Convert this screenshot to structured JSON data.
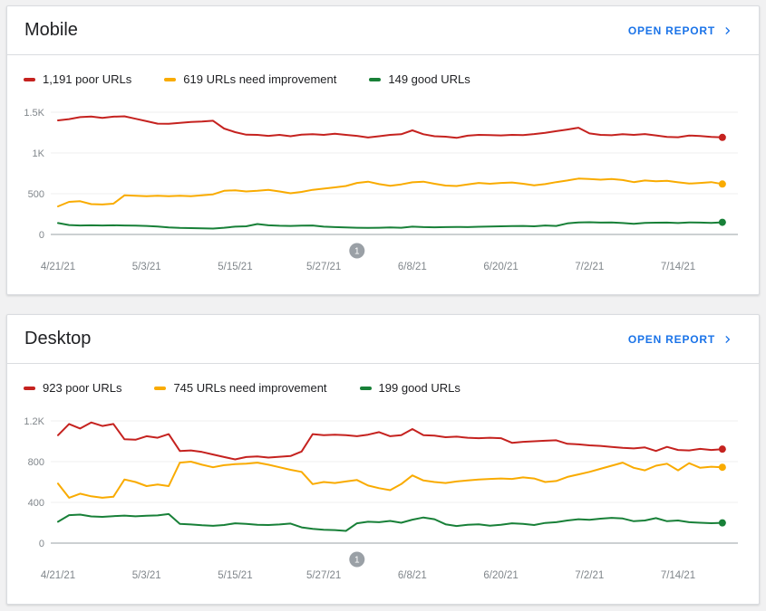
{
  "page": {
    "background": "#f1f1f2"
  },
  "colors": {
    "poor": "#c5221f",
    "needs_improvement": "#f9ab00",
    "good": "#188038",
    "link": "#1a73e8",
    "axis_label": "#80868b",
    "gridline": "#efefef",
    "zero_line": "#9aa0a6",
    "badge_fill": "#9aa0a6",
    "badge_text": "#ffffff",
    "legend_text": "#202124"
  },
  "cards": [
    {
      "id": "mobile",
      "title": "Mobile",
      "open_report_label": "OPEN REPORT",
      "legend": [
        {
          "label": "1,191 poor URLs",
          "series": "poor"
        },
        {
          "label": "619 URLs need improvement",
          "series": "needs_improvement"
        },
        {
          "label": "149 good URLs",
          "series": "good"
        }
      ]
    },
    {
      "id": "desktop",
      "title": "Desktop",
      "open_report_label": "OPEN REPORT",
      "legend": [
        {
          "label": "923 poor URLs",
          "series": "poor"
        },
        {
          "label": "745 URLs need improvement",
          "series": "needs_improvement"
        },
        {
          "label": "199 good URLs",
          "series": "good"
        }
      ]
    }
  ],
  "chart_data": [
    {
      "type": "line",
      "title": "Mobile",
      "x_tick_labels": [
        "4/21/21",
        "5/3/21",
        "5/15/21",
        "5/27/21",
        "6/8/21",
        "6/20/21",
        "7/2/21",
        "7/14/21"
      ],
      "x_tick_days": [
        0,
        12,
        24,
        36,
        48,
        60,
        72,
        84
      ],
      "x_range_days": [
        0,
        90
      ],
      "ylim": [
        0,
        1500
      ],
      "y_ticks": [
        {
          "value": 0,
          "label": "0"
        },
        {
          "value": 500,
          "label": "500"
        },
        {
          "value": 1000,
          "label": "1K"
        },
        {
          "value": 1500,
          "label": "1.5K"
        }
      ],
      "grid": "horizontal-only",
      "legend_position": "top",
      "annotation_marker": {
        "label": "1",
        "day": 40.5
      },
      "series": [
        {
          "name": "poor URLs",
          "color_key": "poor",
          "current_value": 1191,
          "values": [
            1400,
            1415,
            1440,
            1448,
            1430,
            1445,
            1450,
            1420,
            1390,
            1360,
            1358,
            1370,
            1380,
            1385,
            1395,
            1300,
            1255,
            1225,
            1222,
            1210,
            1222,
            1205,
            1225,
            1230,
            1222,
            1235,
            1222,
            1210,
            1190,
            1205,
            1222,
            1230,
            1278,
            1230,
            1205,
            1200,
            1185,
            1212,
            1222,
            1220,
            1215,
            1222,
            1220,
            1232,
            1248,
            1268,
            1288,
            1310,
            1240,
            1222,
            1218,
            1230,
            1222,
            1232,
            1215,
            1198,
            1193,
            1214,
            1208,
            1198,
            1191
          ]
        },
        {
          "name": "URLs need improvement",
          "color_key": "needs_improvement",
          "current_value": 619,
          "values": [
            345,
            400,
            408,
            372,
            368,
            378,
            480,
            474,
            470,
            476,
            470,
            474,
            470,
            480,
            492,
            535,
            542,
            528,
            536,
            548,
            528,
            505,
            522,
            548,
            562,
            578,
            595,
            632,
            648,
            618,
            598,
            615,
            640,
            648,
            622,
            600,
            595,
            615,
            632,
            622,
            632,
            638,
            622,
            602,
            618,
            642,
            662,
            685,
            680,
            672,
            680,
            668,
            642,
            662,
            652,
            658,
            640,
            625,
            632,
            642,
            619
          ]
        },
        {
          "name": "good URLs",
          "color_key": "good",
          "current_value": 149,
          "values": [
            140,
            116,
            110,
            112,
            110,
            112,
            110,
            108,
            105,
            98,
            85,
            80,
            78,
            75,
            72,
            82,
            96,
            100,
            128,
            112,
            107,
            104,
            108,
            110,
            96,
            90,
            85,
            82,
            80,
            82,
            85,
            82,
            95,
            90,
            88,
            90,
            92,
            90,
            94,
            97,
            100,
            103,
            105,
            100,
            110,
            105,
            135,
            148,
            150,
            145,
            148,
            140,
            130,
            142,
            144,
            146,
            140,
            148,
            145,
            142,
            149
          ]
        }
      ]
    },
    {
      "type": "line",
      "title": "Desktop",
      "x_tick_labels": [
        "4/21/21",
        "5/3/21",
        "5/15/21",
        "5/27/21",
        "6/8/21",
        "6/20/21",
        "7/2/21",
        "7/14/21"
      ],
      "x_tick_days": [
        0,
        12,
        24,
        36,
        48,
        60,
        72,
        84
      ],
      "x_range_days": [
        0,
        90
      ],
      "ylim": [
        0,
        1200
      ],
      "y_ticks": [
        {
          "value": 0,
          "label": "0"
        },
        {
          "value": 400,
          "label": "400"
        },
        {
          "value": 800,
          "label": "800"
        },
        {
          "value": 1200,
          "label": "1.2K"
        }
      ],
      "grid": "horizontal-only",
      "legend_position": "top",
      "annotation_marker": {
        "label": "1",
        "day": 40.5
      },
      "series": [
        {
          "name": "poor URLs",
          "color_key": "poor",
          "current_value": 923,
          "values": [
            1060,
            1170,
            1125,
            1185,
            1150,
            1170,
            1020,
            1015,
            1050,
            1035,
            1070,
            905,
            910,
            895,
            870,
            845,
            822,
            845,
            852,
            840,
            848,
            855,
            900,
            1070,
            1060,
            1065,
            1060,
            1050,
            1065,
            1090,
            1050,
            1060,
            1120,
            1060,
            1055,
            1040,
            1045,
            1035,
            1030,
            1035,
            1030,
            985,
            995,
            1000,
            1005,
            1010,
            975,
            970,
            960,
            955,
            945,
            935,
            930,
            940,
            905,
            945,
            915,
            910,
            925,
            915,
            923
          ]
        },
        {
          "name": "URLs need improvement",
          "color_key": "needs_improvement",
          "current_value": 745,
          "values": [
            585,
            445,
            485,
            460,
            445,
            455,
            625,
            600,
            560,
            575,
            560,
            790,
            800,
            770,
            745,
            765,
            775,
            780,
            790,
            770,
            745,
            720,
            700,
            580,
            600,
            590,
            605,
            620,
            565,
            540,
            520,
            580,
            665,
            615,
            600,
            590,
            605,
            615,
            625,
            630,
            635,
            630,
            645,
            635,
            600,
            610,
            650,
            675,
            700,
            730,
            760,
            790,
            740,
            715,
            760,
            780,
            715,
            785,
            740,
            750,
            745
          ]
        },
        {
          "name": "good URLs",
          "color_key": "good",
          "current_value": 199,
          "values": [
            210,
            275,
            280,
            262,
            258,
            265,
            270,
            263,
            268,
            272,
            285,
            188,
            183,
            175,
            170,
            178,
            195,
            188,
            180,
            178,
            183,
            192,
            155,
            140,
            132,
            128,
            120,
            195,
            210,
            205,
            218,
            200,
            230,
            252,
            235,
            185,
            168,
            180,
            185,
            172,
            180,
            195,
            188,
            178,
            198,
            205,
            222,
            235,
            228,
            240,
            248,
            242,
            215,
            222,
            245,
            215,
            222,
            205,
            200,
            196,
            199
          ]
        }
      ]
    }
  ]
}
